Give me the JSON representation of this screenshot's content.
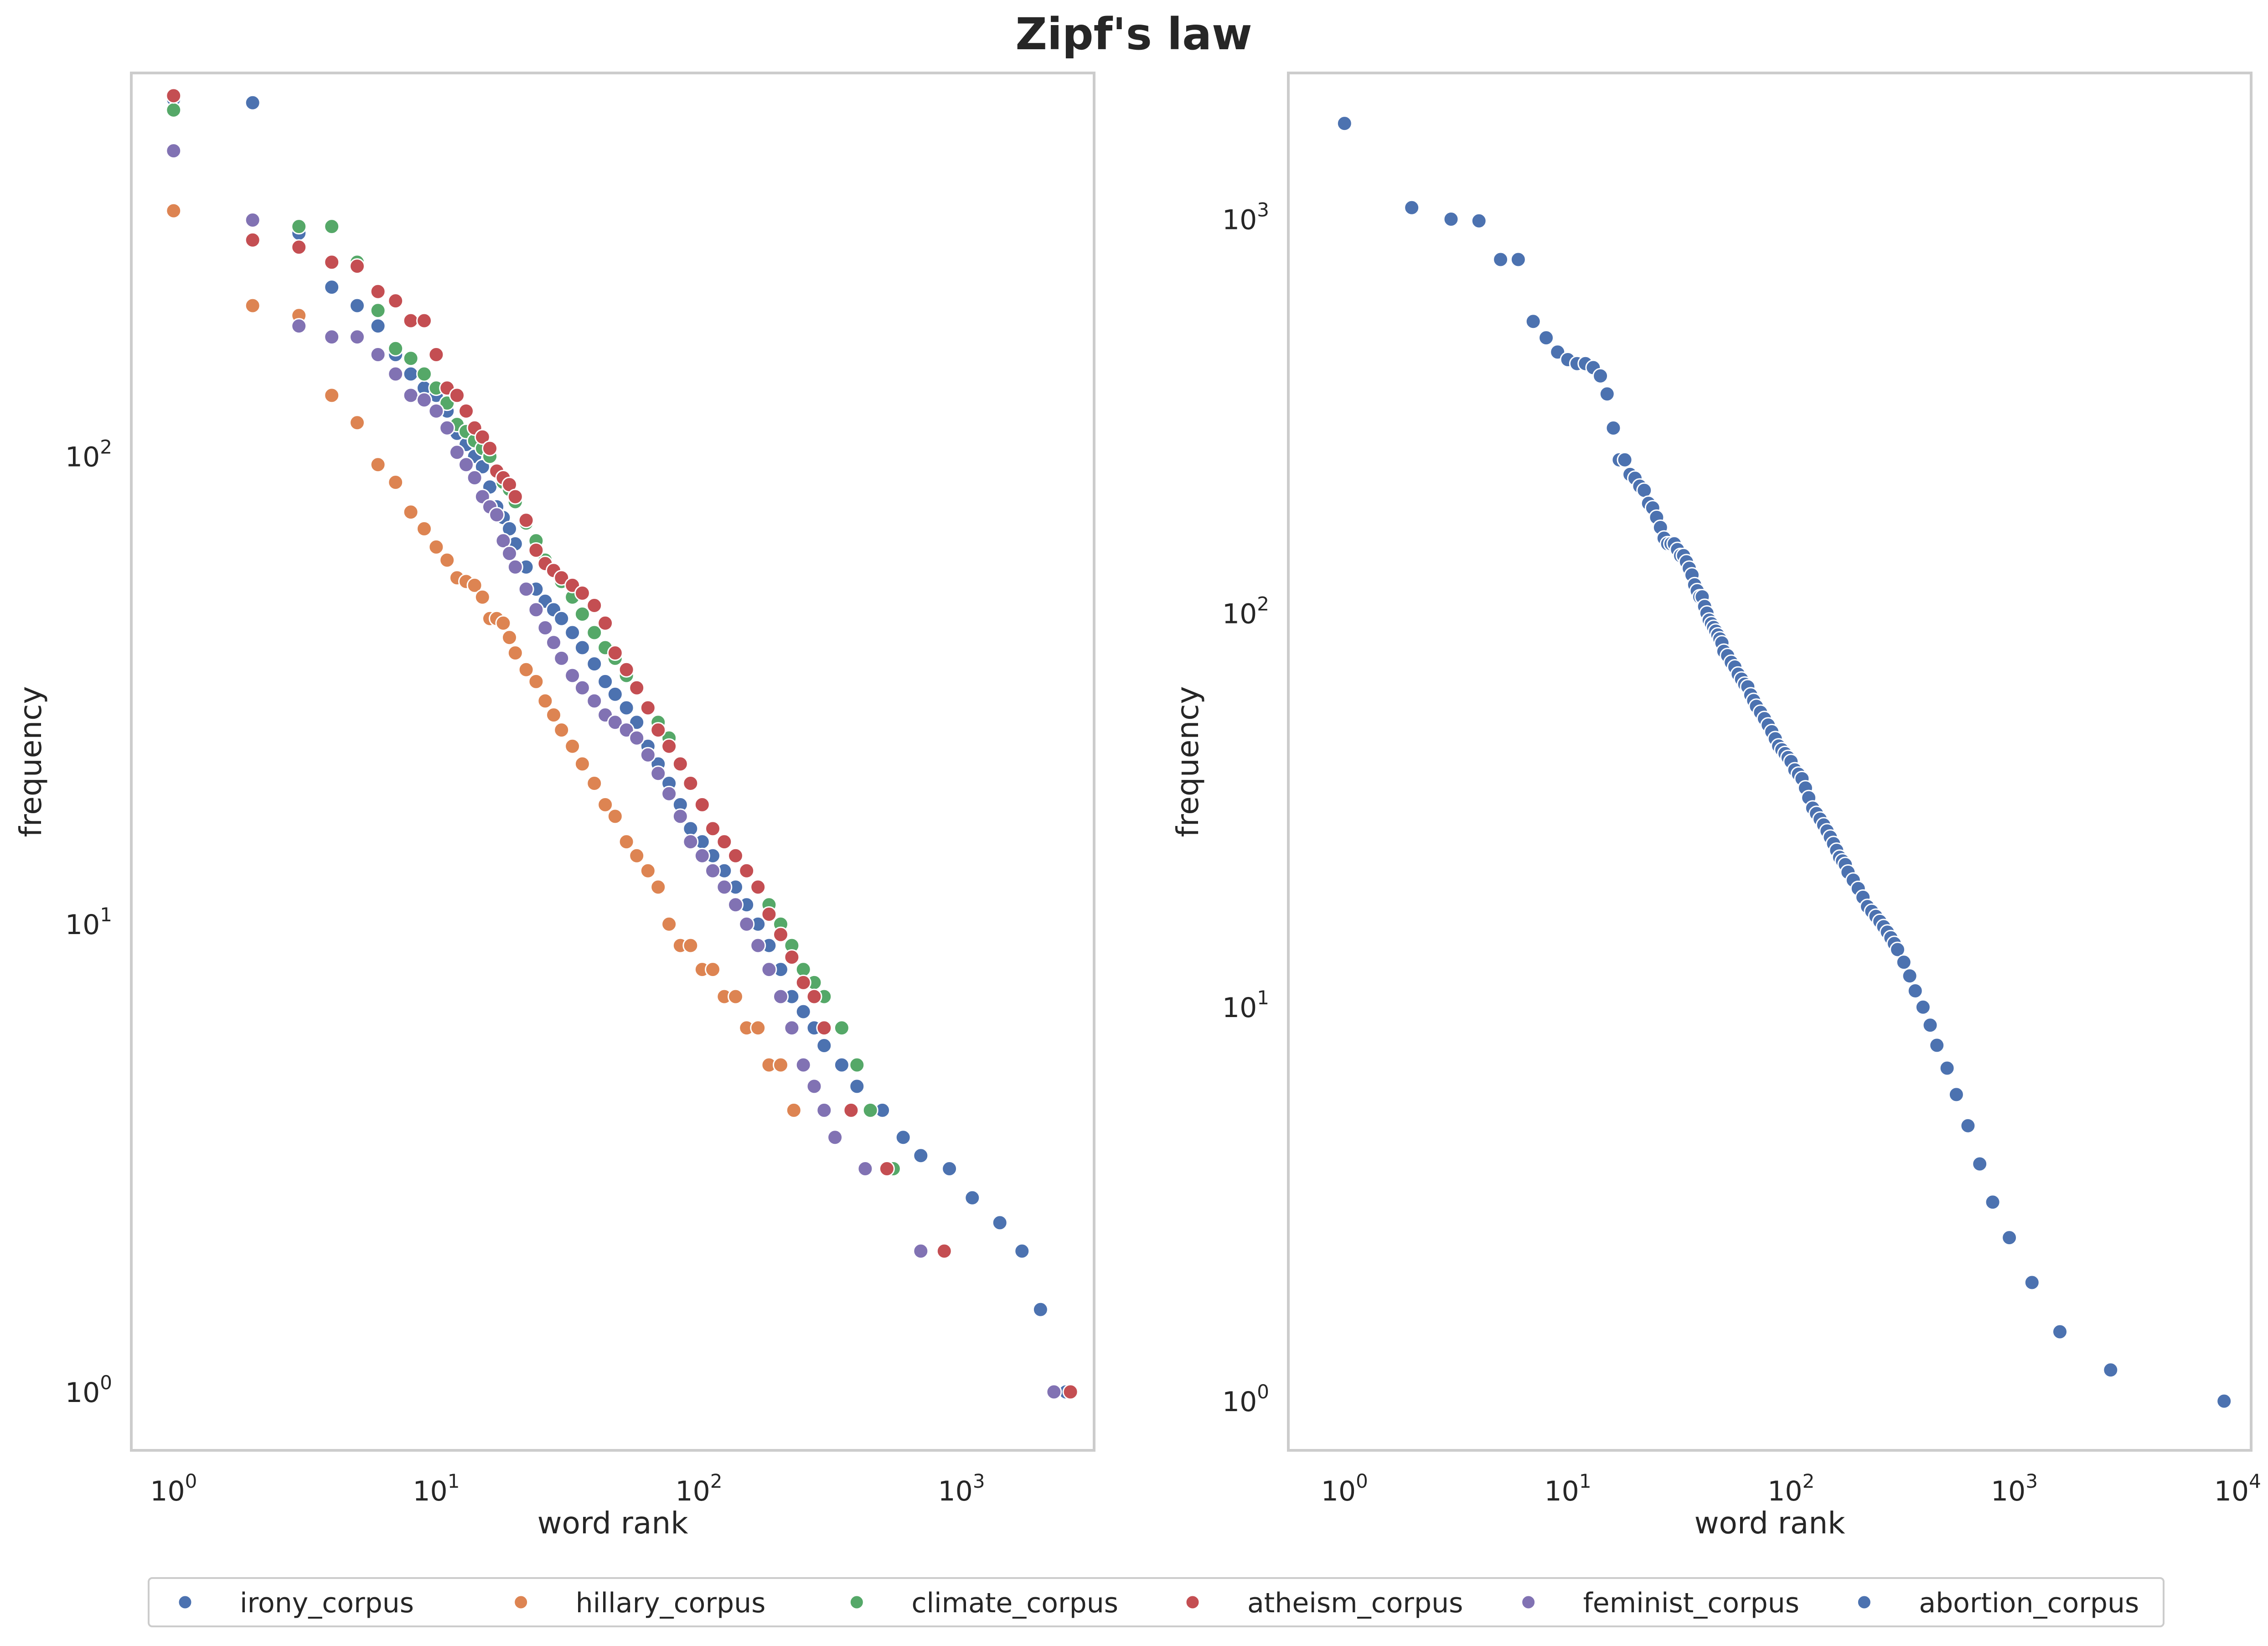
{
  "figure": {
    "title": "Zipf's law",
    "legend": [
      {
        "name": "irony_corpus",
        "color": "#4c72b0"
      },
      {
        "name": "hillary_corpus",
        "color": "#dd8452"
      },
      {
        "name": "climate_corpus",
        "color": "#55a868"
      },
      {
        "name": "atheism_corpus",
        "color": "#c44e52"
      },
      {
        "name": "feminist_corpus",
        "color": "#8172b3"
      },
      {
        "name": "abortion_corpus",
        "color": "#4c72b0"
      }
    ],
    "legend_position": "bottom-center"
  },
  "chart_data": [
    {
      "type": "scatter",
      "title": "",
      "xlabel": "word rank",
      "ylabel": "frequency",
      "xscale": "log",
      "yscale": "log",
      "xlim": [
        0.69,
        3200
      ],
      "ylim": [
        0.75,
        660
      ],
      "grid": false,
      "xticks": [
        {
          "value": 1,
          "label": "10^0"
        },
        {
          "value": 10,
          "label": "10^1"
        },
        {
          "value": 100,
          "label": "10^2"
        },
        {
          "value": 1000,
          "label": "10^3"
        }
      ],
      "yticks": [
        {
          "value": 1,
          "label": "10^0"
        },
        {
          "value": 10,
          "label": "10^1"
        },
        {
          "value": 100,
          "label": "10^2"
        }
      ],
      "series": [
        {
          "name": "irony_corpus",
          "color": "#4c72b0",
          "x": [
            1,
            2,
            3,
            4,
            5,
            6,
            7,
            8,
            9,
            10,
            11,
            12,
            13,
            14,
            15,
            16,
            17,
            18,
            19,
            20,
            22,
            24,
            26,
            28,
            30,
            33,
            36,
            40,
            44,
            48,
            53,
            58,
            64,
            70,
            77,
            85,
            93,
            103,
            113,
            125,
            138,
            152,
            168,
            185,
            205,
            226,
            250,
            275,
            300,
            350,
            400,
            500,
            600,
            700,
            900,
            1100,
            1400,
            1700,
            2000,
            2500
          ],
          "y": [
            580,
            570,
            300,
            230,
            210,
            190,
            165,
            150,
            140,
            135,
            125,
            112,
            106,
            100,
            95,
            86,
            78,
            74,
            70,
            65,
            58,
            52,
            49,
            47,
            45,
            42,
            39,
            36,
            33,
            31,
            29,
            27,
            24,
            22,
            20,
            18,
            16,
            15,
            14,
            13,
            12,
            11,
            10,
            9,
            8,
            7,
            6.5,
            6,
            5.5,
            5,
            4.5,
            4,
            3.5,
            3.2,
            3,
            2.6,
            2.3,
            2,
            1.5,
            1
          ]
        },
        {
          "name": "hillary_corpus",
          "color": "#dd8452",
          "x": [
            1,
            2,
            3,
            4,
            5,
            6,
            7,
            8,
            9,
            10,
            11,
            12,
            13,
            14,
            15,
            16,
            17,
            18,
            19,
            20,
            22,
            24,
            26,
            28,
            30,
            33,
            36,
            40,
            44,
            48,
            53,
            58,
            64,
            70,
            77,
            85,
            93,
            103,
            113,
            125,
            138,
            152,
            168,
            185,
            205,
            230
          ],
          "y": [
            335,
            210,
            200,
            135,
            118,
            96,
            88,
            76,
            70,
            64,
            60,
            55,
            54,
            53,
            50,
            45,
            45,
            44,
            41,
            38,
            35,
            33,
            30,
            28,
            26,
            24,
            22,
            20,
            18,
            17,
            15,
            14,
            13,
            12,
            10,
            9,
            9,
            8,
            8,
            7,
            7,
            6,
            6,
            5,
            5,
            4
          ]
        },
        {
          "name": "climate_corpus",
          "color": "#55a868",
          "x": [
            1,
            2,
            3,
            4,
            5,
            6,
            7,
            8,
            9,
            10,
            11,
            12,
            13,
            14,
            15,
            16,
            17,
            18,
            19,
            20,
            22,
            24,
            26,
            28,
            30,
            33,
            36,
            40,
            44,
            48,
            53,
            58,
            64,
            70,
            77,
            85,
            93,
            103,
            113,
            125,
            138,
            152,
            168,
            185,
            205,
            226,
            250,
            275,
            300,
            350,
            400,
            450,
            550
          ],
          "y": [
            550,
            320,
            310,
            310,
            260,
            205,
            170,
            162,
            150,
            140,
            130,
            117,
            113,
            108,
            104,
            100,
            93,
            88,
            85,
            80,
            72,
            66,
            60,
            57,
            54,
            50,
            46,
            42,
            39,
            37,
            34,
            32,
            29,
            27,
            25,
            22,
            20,
            18,
            16,
            15,
            14,
            13,
            12,
            11,
            10,
            9,
            8,
            7.5,
            7,
            6,
            5,
            4,
            3
          ]
        },
        {
          "name": "atheism_corpus",
          "color": "#c44e52",
          "x": [
            1,
            2,
            3,
            4,
            5,
            6,
            7,
            8,
            9,
            10,
            11,
            12,
            13,
            14,
            15,
            16,
            17,
            18,
            19,
            20,
            22,
            24,
            26,
            28,
            30,
            33,
            36,
            40,
            44,
            48,
            53,
            58,
            64,
            70,
            77,
            85,
            93,
            103,
            113,
            125,
            138,
            152,
            168,
            185,
            205,
            226,
            250,
            275,
            300,
            380,
            520,
            860,
            2600
          ],
          "y": [
            590,
            290,
            280,
            260,
            255,
            225,
            215,
            195,
            195,
            165,
            140,
            135,
            125,
            115,
            110,
            104,
            93,
            90,
            87,
            82,
            73,
            63,
            59,
            57,
            55,
            53,
            51,
            48,
            44,
            38,
            35,
            32,
            29,
            26,
            24,
            22,
            20,
            18,
            16,
            15,
            14,
            13,
            12,
            10.5,
            9.5,
            8.5,
            7.5,
            7,
            6,
            4,
            3,
            2,
            1
          ]
        },
        {
          "name": "feminist_corpus",
          "color": "#8172b3",
          "x": [
            1,
            2,
            3,
            4,
            5,
            6,
            7,
            8,
            9,
            10,
            11,
            12,
            13,
            14,
            15,
            16,
            17,
            18,
            19,
            20,
            22,
            24,
            26,
            28,
            30,
            33,
            36,
            40,
            44,
            48,
            53,
            58,
            64,
            70,
            77,
            85,
            93,
            103,
            113,
            125,
            138,
            152,
            168,
            185,
            205,
            226,
            250,
            275,
            300,
            330,
            430,
            700,
            2250
          ],
          "y": [
            450,
            320,
            190,
            180,
            180,
            165,
            150,
            135,
            132,
            125,
            115,
            102,
            96,
            90,
            82,
            78,
            75,
            66,
            62,
            58,
            52,
            47,
            43,
            40,
            37,
            34,
            32,
            30,
            28,
            27,
            26,
            25,
            23,
            21,
            19,
            17,
            15,
            14,
            13,
            12,
            11,
            10,
            9,
            8,
            7,
            6,
            5,
            4.5,
            4,
            3.5,
            3,
            2,
            1
          ]
        }
      ]
    },
    {
      "type": "scatter",
      "title": "",
      "xlabel": "word rank",
      "ylabel": "frequency",
      "xscale": "log",
      "yscale": "log",
      "xlim": [
        0.56,
        11500
      ],
      "ylim": [
        0.75,
        2350
      ],
      "grid": false,
      "xticks": [
        {
          "value": 1,
          "label": "10^0"
        },
        {
          "value": 10,
          "label": "10^1"
        },
        {
          "value": 100,
          "label": "10^2"
        },
        {
          "value": 1000,
          "label": "10^3"
        },
        {
          "value": 10000,
          "label": "10^4"
        }
      ],
      "yticks": [
        {
          "value": 1,
          "label": "10^0"
        },
        {
          "value": 10,
          "label": "10^1"
        },
        {
          "value": 100,
          "label": "10^2"
        },
        {
          "value": 1000,
          "label": "10^3"
        }
      ],
      "series": [
        {
          "name": "abortion_corpus",
          "color": "#4c72b0",
          "x": [
            1,
            2,
            3,
            4,
            5,
            6,
            7,
            8,
            9,
            10,
            11,
            12,
            13,
            14,
            15,
            16,
            17,
            18,
            19,
            20,
            21,
            22,
            23,
            24,
            25,
            26,
            27,
            28,
            29,
            30,
            31,
            32,
            33,
            34,
            35,
            36,
            37,
            38,
            39,
            40,
            41,
            42,
            43,
            44,
            45,
            46,
            47,
            48,
            49,
            50,
            52,
            54,
            56,
            58,
            60,
            62,
            64,
            66,
            68,
            70,
            73,
            76,
            79,
            82,
            85,
            88,
            91,
            94,
            97,
            100,
            104,
            108,
            112,
            116,
            120,
            125,
            130,
            135,
            140,
            145,
            150,
            155,
            160,
            165,
            170,
            175,
            180,
            190,
            200,
            210,
            220,
            230,
            240,
            250,
            260,
            270,
            280,
            290,
            300,
            320,
            340,
            360,
            390,
            420,
            450,
            500,
            550,
            620,
            700,
            800,
            950,
            1200,
            1600,
            2700,
            8700
          ],
          "y": [
            1750,
            1070,
            1000,
            990,
            790,
            790,
            550,
            500,
            460,
            440,
            430,
            430,
            420,
            400,
            360,
            295,
            245,
            245,
            225,
            220,
            210,
            205,
            190,
            185,
            175,
            165,
            155,
            150,
            150,
            150,
            145,
            140,
            140,
            135,
            130,
            125,
            118,
            114,
            110,
            110,
            104,
            100,
            96,
            94,
            92,
            90,
            88,
            86,
            84,
            80,
            78,
            75,
            73,
            70,
            68,
            66,
            65,
            62,
            60,
            58,
            56,
            54,
            52,
            50,
            48,
            46,
            45,
            44,
            43,
            42,
            40,
            39,
            38,
            36,
            34,
            32,
            31,
            30,
            29,
            28,
            27,
            26,
            25,
            24,
            23.5,
            23,
            22,
            21,
            20,
            19,
            18,
            17.5,
            17,
            16.5,
            16,
            15.5,
            15,
            14.5,
            14,
            13,
            12,
            11,
            10,
            9,
            8,
            7,
            6,
            5,
            4,
            3.2,
            2.6,
            2,
            1.5,
            1.2,
            1
          ]
        }
      ]
    }
  ]
}
